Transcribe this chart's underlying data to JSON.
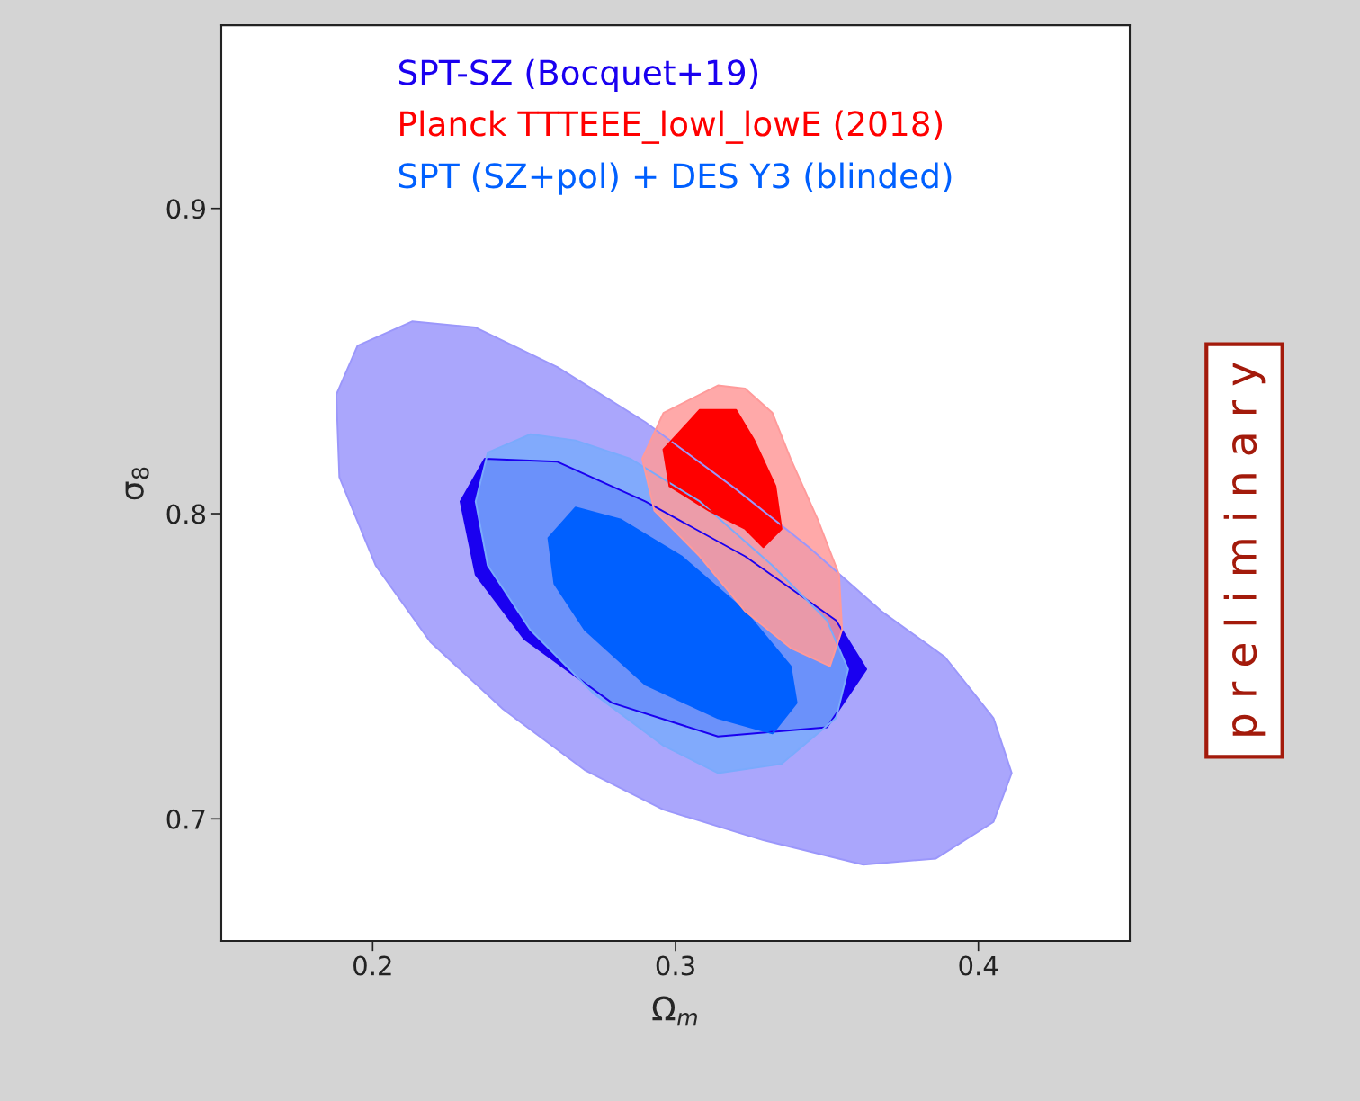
{
  "chart_data": {
    "type": "area",
    "xlabel": "Ω$_{m}$",
    "ylabel": "σ$_{8}$",
    "xlim": [
      0.15,
      0.45
    ],
    "xticks": [
      0.2,
      0.3,
      0.4
    ],
    "ylim": [
      0.66,
      0.96
    ],
    "yticks": [
      0.7,
      0.8,
      0.9
    ],
    "grid": false,
    "legend": "top",
    "annotations": [
      "p r e l i m i n a r y"
    ],
    "series": [
      {
        "color": "#9b97fb",
        "x": [
          0.213,
          0.195,
          0.188,
          0.189,
          0.201,
          0.219,
          0.243,
          0.27,
          0.296,
          0.329,
          0.362,
          0.386,
          0.405,
          0.411,
          0.405,
          0.389,
          0.368,
          0.344,
          0.32,
          0.29,
          0.261,
          0.234
        ],
        "values": [
          0.863,
          0.855,
          0.839,
          0.812,
          0.783,
          0.758,
          0.736,
          0.716,
          0.703,
          0.693,
          0.685,
          0.687,
          0.699,
          0.715,
          0.733,
          0.753,
          0.768,
          0.789,
          0.808,
          0.83,
          0.848,
          0.861
        ]
      },
      {
        "name": "SPT-SZ (Bocquet+19)",
        "color": "#1a00f0",
        "x": [
          0.237,
          0.229,
          0.234,
          0.25,
          0.279,
          0.314,
          0.35,
          0.363,
          0.353,
          0.323,
          0.29,
          0.261
        ],
        "values": [
          0.818,
          0.804,
          0.78,
          0.759,
          0.738,
          0.727,
          0.73,
          0.749,
          0.765,
          0.786,
          0.804,
          0.817
        ]
      },
      {
        "color": "#7aaafc",
        "x": [
          0.252,
          0.238,
          0.234,
          0.238,
          0.252,
          0.273,
          0.296,
          0.314,
          0.335,
          0.353,
          0.357,
          0.35,
          0.332,
          0.308,
          0.285,
          0.267
        ],
        "values": [
          0.826,
          0.82,
          0.804,
          0.783,
          0.762,
          0.741,
          0.724,
          0.715,
          0.718,
          0.733,
          0.749,
          0.765,
          0.783,
          0.804,
          0.818,
          0.824
        ]
      },
      {
        "name": "SPT (SZ+pol) + DES Y3 (blinded)",
        "color": "#0060ff",
        "x": [
          0.267,
          0.258,
          0.26,
          0.27,
          0.29,
          0.314,
          0.332,
          0.34,
          0.338,
          0.323,
          0.302,
          0.282
        ],
        "values": [
          0.802,
          0.792,
          0.777,
          0.762,
          0.744,
          0.733,
          0.728,
          0.738,
          0.75,
          0.768,
          0.786,
          0.798
        ]
      },
      {
        "color": "#ff9a9a",
        "x": [
          0.314,
          0.296,
          0.289,
          0.293,
          0.308,
          0.323,
          0.338,
          0.351,
          0.355,
          0.354,
          0.347,
          0.338,
          0.332,
          0.323
        ],
        "values": [
          0.842,
          0.833,
          0.818,
          0.801,
          0.786,
          0.768,
          0.756,
          0.75,
          0.762,
          0.78,
          0.798,
          0.818,
          0.833,
          0.841
        ]
      },
      {
        "name": "Planck TTTEEE_lowl_lowE (2018)",
        "color": "#ff0000",
        "x": [
          0.308,
          0.296,
          0.298,
          0.311,
          0.323,
          0.329,
          0.335,
          0.333,
          0.326,
          0.32
        ],
        "values": [
          0.834,
          0.821,
          0.809,
          0.801,
          0.795,
          0.789,
          0.795,
          0.809,
          0.824,
          0.834
        ]
      }
    ]
  }
}
